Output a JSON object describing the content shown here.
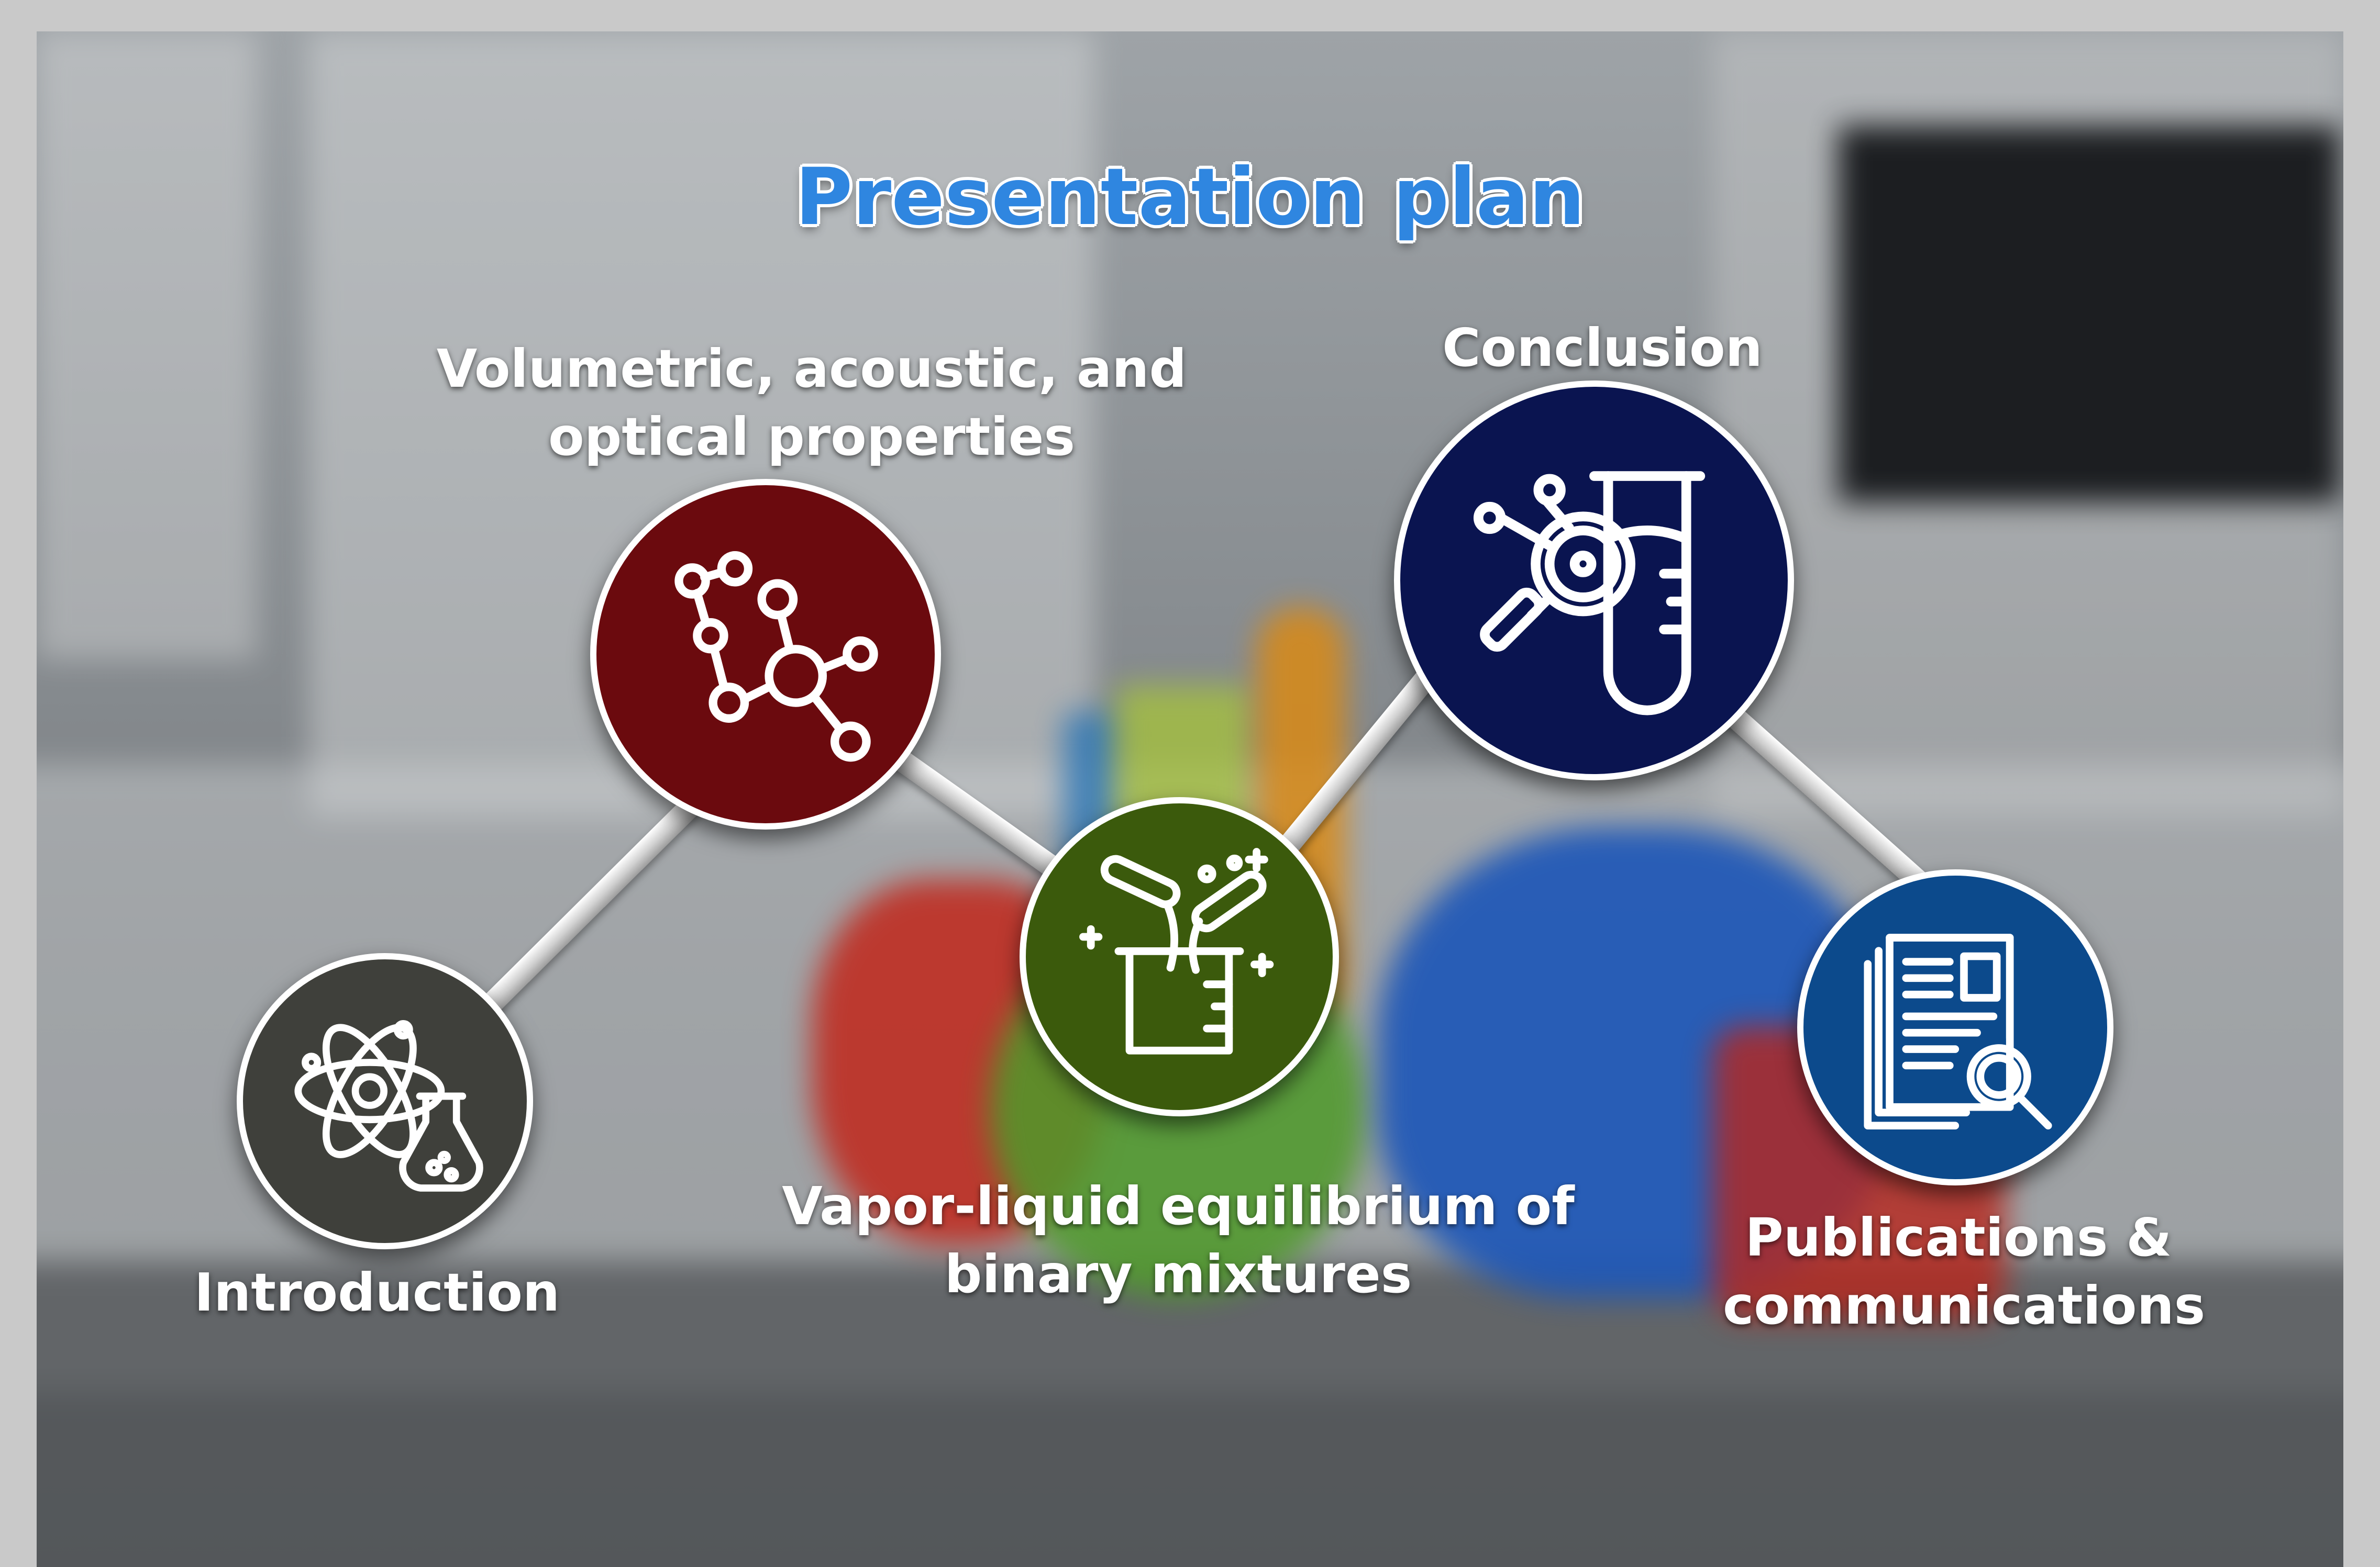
{
  "title": "Presentation plan",
  "nodes": {
    "introduction": {
      "label": "Introduction",
      "color": "#3f403b",
      "icon": "atom-flask-icon"
    },
    "volumetric": {
      "label_line1": "Volumetric, acoustic, and",
      "label_line2": "optical properties",
      "color": "#6b0a0e",
      "icon": "molecule-icon"
    },
    "vapor_liquid": {
      "label_line1": "Vapor-liquid equilibrium of",
      "label_line2": "binary mixtures",
      "color": "#3b5a0c",
      "icon": "beaker-test-tubes-icon"
    },
    "conclusion": {
      "label": "Conclusion",
      "color": "#0a1450",
      "icon": "magnifier-test-tube-icon"
    },
    "publications": {
      "label_line1": "Publications &",
      "label_line2": "communications",
      "color": "#0c4a8c",
      "icon": "documents-search-icon"
    }
  },
  "colors": {
    "title": "#2f86e0",
    "ring": "#ffffff",
    "rod": "#d6d6d6"
  }
}
